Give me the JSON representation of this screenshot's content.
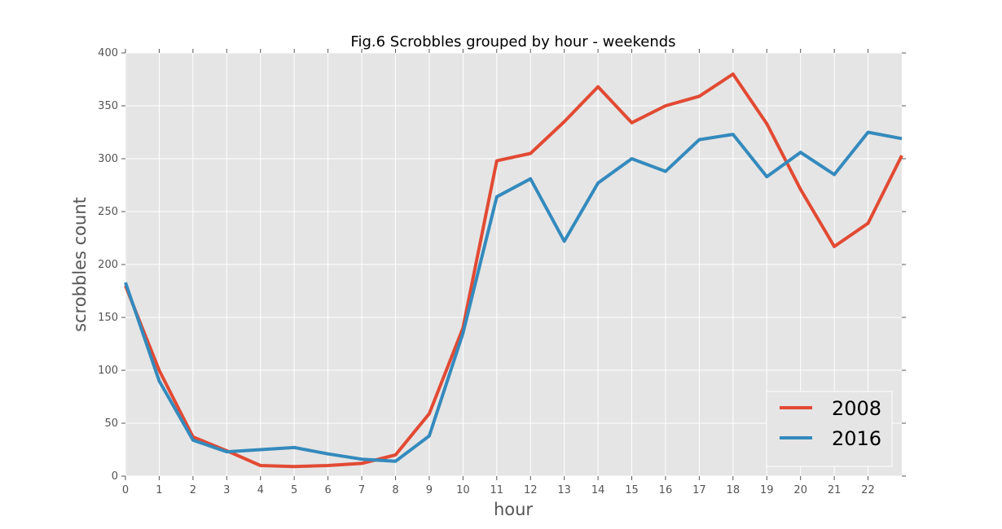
{
  "chart_data": {
    "type": "line",
    "title": "Fig.6 Scrobbles grouped by hour - weekends",
    "xlabel": "hour",
    "ylabel": "scrobbles count",
    "x": [
      0,
      1,
      2,
      3,
      4,
      5,
      6,
      7,
      8,
      9,
      10,
      11,
      12,
      13,
      14,
      15,
      16,
      17,
      18,
      19,
      20,
      21,
      22,
      23
    ],
    "x_tick_labels": [
      "0",
      "1",
      "2",
      "3",
      "4",
      "5",
      "6",
      "7",
      "8",
      "9",
      "10",
      "11",
      "12",
      "13",
      "14",
      "15",
      "16",
      "17",
      "18",
      "19",
      "20",
      "21",
      "22"
    ],
    "xlim": [
      0,
      23
    ],
    "ylim": [
      0,
      400
    ],
    "y_ticks": [
      0,
      50,
      100,
      150,
      200,
      250,
      300,
      350,
      400
    ],
    "grid": true,
    "legend_position": "bottom-right",
    "series": [
      {
        "name": "2008",
        "color": "#e24a33",
        "values": [
          180,
          100,
          37,
          24,
          10,
          9,
          10,
          12,
          20,
          59,
          140,
          298,
          305,
          335,
          368,
          334,
          350,
          359,
          380,
          333,
          271,
          217,
          239,
          303
        ]
      },
      {
        "name": "2016",
        "color": "#348abd",
        "values": [
          183,
          90,
          34,
          23,
          25,
          27,
          21,
          16,
          14,
          38,
          135,
          264,
          281,
          222,
          277,
          300,
          288,
          318,
          323,
          283,
          306,
          285,
          325,
          319
        ]
      }
    ]
  }
}
